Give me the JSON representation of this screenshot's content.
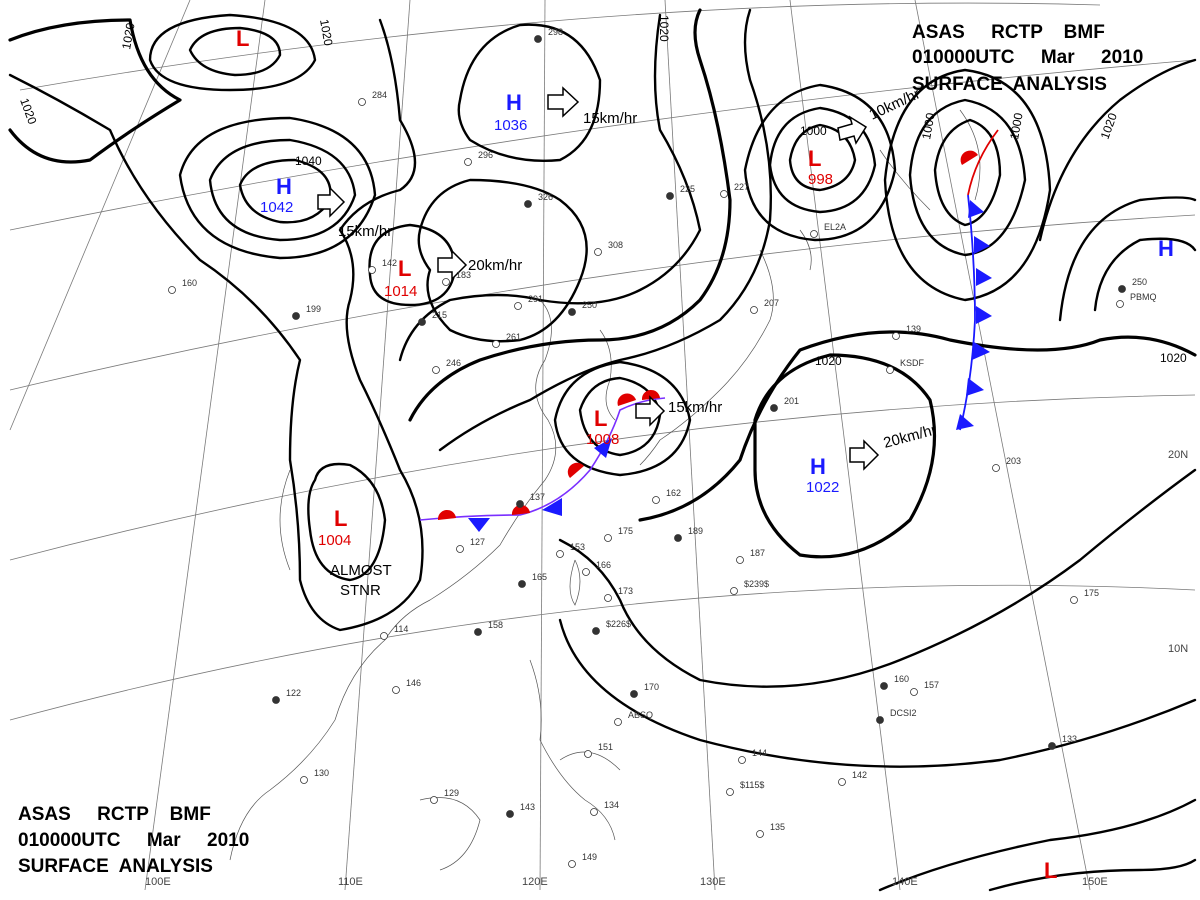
{
  "header": {
    "title_line1": "ASAS     RCTP    BMF",
    "title_line2": "010000UTC     Mar     2010",
    "title_line3": "SURFACE  ANALYSIS"
  },
  "colors": {
    "high": "#1a1aff",
    "low": "#e00000",
    "warm_front": "#e00000",
    "cold_front": "#1a1aff",
    "isobar": "#000000"
  },
  "pressure_centers": [
    {
      "id": "low-nw",
      "type": "L",
      "value": ""
    },
    {
      "id": "high-mongolia",
      "type": "H",
      "value": "1042"
    },
    {
      "id": "high-siberia",
      "type": "H",
      "value": "1036"
    },
    {
      "id": "low-north-china",
      "type": "L",
      "value": "1014"
    },
    {
      "id": "low-okhotsk",
      "type": "L",
      "value": "998"
    },
    {
      "id": "low-east-china-sea",
      "type": "L",
      "value": "1008"
    },
    {
      "id": "low-indochina",
      "type": "L",
      "value": "1004"
    },
    {
      "id": "high-pacific",
      "type": "H",
      "value": "1022"
    },
    {
      "id": "high-far-east",
      "type": "H",
      "value": ""
    },
    {
      "id": "low-southeast",
      "type": "L",
      "value": ""
    }
  ],
  "motion_vectors": [
    {
      "id": "motion-high-siberia",
      "label": "15km/hr"
    },
    {
      "id": "motion-high-mongolia",
      "label": "15km/hr"
    },
    {
      "id": "motion-low-north-china",
      "label": "20km/hr"
    },
    {
      "id": "motion-low-okhotsk",
      "label": "10km/hr"
    },
    {
      "id": "motion-low-east-china-sea",
      "label": "15km/hr"
    },
    {
      "id": "motion-high-pacific",
      "label": "20km/hr"
    }
  ],
  "isobar_labels": [
    {
      "id": "iso-1020-a",
      "text": "1020"
    },
    {
      "id": "iso-1020-b",
      "text": "1020"
    },
    {
      "id": "iso-1020-c",
      "text": "1020"
    },
    {
      "id": "iso-1020-d",
      "text": "1020"
    },
    {
      "id": "iso-1040",
      "text": "1040"
    },
    {
      "id": "iso-1000-a",
      "text": "1000"
    },
    {
      "id": "iso-1000-b",
      "text": "1000"
    },
    {
      "id": "iso-1000-c",
      "text": "1000"
    },
    {
      "id": "iso-1020-e",
      "text": "1020"
    },
    {
      "id": "iso-1020-f",
      "text": "1020"
    },
    {
      "id": "iso-1020-g",
      "text": "1020"
    }
  ],
  "annotations": {
    "almost": "ALMOST",
    "stnr": "STNR"
  },
  "latitude_labels": [
    "20N",
    "10N"
  ],
  "longitude_labels": [
    "100E",
    "110E",
    "120E",
    "130E",
    "140E",
    "150E"
  ],
  "station_samples": [
    {
      "text": "298"
    },
    {
      "text": "284"
    },
    {
      "text": "296"
    },
    {
      "text": "326"
    },
    {
      "text": "308"
    },
    {
      "text": "291"
    },
    {
      "text": "250"
    },
    {
      "text": "261"
    },
    {
      "text": "246"
    },
    {
      "text": "215"
    },
    {
      "text": "142"
    },
    {
      "text": "183"
    },
    {
      "text": "199"
    },
    {
      "text": "160"
    },
    {
      "text": "127"
    },
    {
      "text": "137"
    },
    {
      "text": "153"
    },
    {
      "text": "166"
    },
    {
      "text": "165"
    },
    {
      "text": "173"
    },
    {
      "text": "175"
    },
    {
      "text": "189"
    },
    {
      "text": "187"
    },
    {
      "text": "162"
    },
    {
      "text": "158"
    },
    {
      "text": "114"
    },
    {
      "text": "146"
    },
    {
      "text": "122"
    },
    {
      "text": "130"
    },
    {
      "text": "129"
    },
    {
      "text": "143"
    },
    {
      "text": "151"
    },
    {
      "text": "134"
    },
    {
      "text": "170"
    },
    {
      "text": "144"
    },
    {
      "text": "142"
    },
    {
      "text": "160"
    },
    {
      "text": "157"
    },
    {
      "text": "203"
    },
    {
      "text": "201"
    },
    {
      "text": "139"
    },
    {
      "text": "207"
    },
    {
      "text": "225"
    },
    {
      "text": "227"
    },
    {
      "text": "175"
    },
    {
      "text": "133"
    },
    {
      "text": "135"
    },
    {
      "text": "149"
    },
    {
      "text": "250"
    },
    {
      "text": "KSDF"
    },
    {
      "text": "ABSQ"
    },
    {
      "text": "DCSI2"
    },
    {
      "text": "EL2A"
    },
    {
      "text": "$239$"
    },
    {
      "text": "$226$"
    },
    {
      "text": "$115$"
    },
    {
      "text": "PBMQ"
    }
  ]
}
